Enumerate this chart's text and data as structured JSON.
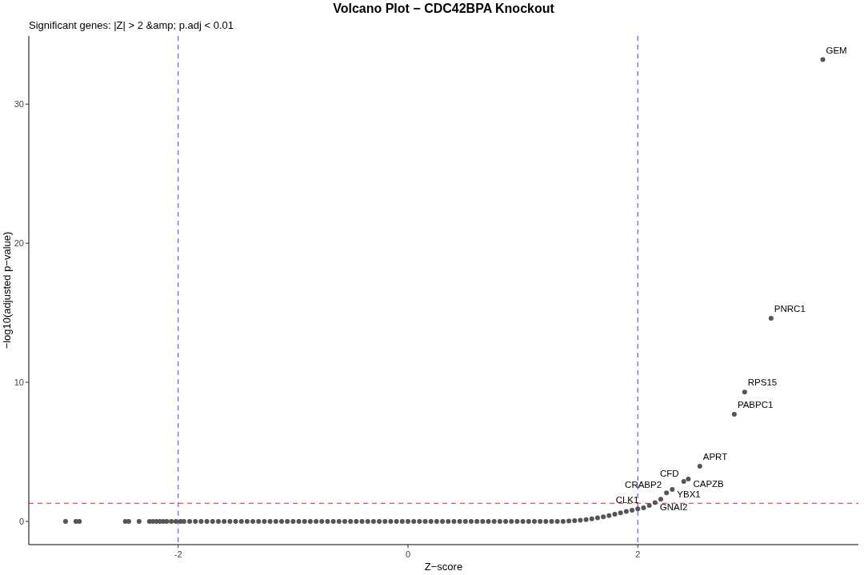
{
  "chart_data": {
    "type": "scatter",
    "title": "Volcano Plot − CDC42BPA Knockout",
    "subtitle": "Significant genes: |Z| > 2 &amp; p.adj < 0.01",
    "xlabel": "Z−score",
    "ylabel": "−log10(adjusted p−value)",
    "xlim": [
      -3.3,
      3.92
    ],
    "ylim": [
      -1.67,
      34.9
    ],
    "xticks": [
      -2,
      0,
      2
    ],
    "yticks": [
      0,
      10,
      20,
      30
    ],
    "grid": false,
    "marker": "circle",
    "x": [
      -2.98,
      -2.89,
      -2.86,
      -2.46,
      -2.43,
      -2.34,
      -2.25,
      -2.22,
      -2.19,
      -2.16,
      -2.13,
      -2.1,
      -2.06,
      -2.02,
      -1.98,
      -1.95,
      -1.9,
      -1.85,
      -1.8,
      -1.75,
      -1.7,
      -1.65,
      -1.6,
      -1.55,
      -1.5,
      -1.45,
      -1.4,
      -1.35,
      -1.3,
      -1.25,
      -1.2,
      -1.15,
      -1.1,
      -1.05,
      -1.0,
      -0.95,
      -0.9,
      -0.85,
      -0.8,
      -0.75,
      -0.7,
      -0.65,
      -0.6,
      -0.55,
      -0.5,
      -0.45,
      -0.4,
      -0.35,
      -0.3,
      -0.25,
      -0.2,
      -0.15,
      -0.1,
      -0.05,
      0.0,
      0.05,
      0.1,
      0.15,
      0.2,
      0.25,
      0.3,
      0.35,
      0.4,
      0.45,
      0.5,
      0.55,
      0.6,
      0.65,
      0.7,
      0.75,
      0.8,
      0.85,
      0.9,
      0.95,
      1.0,
      1.05,
      1.1,
      1.15,
      1.2,
      1.25,
      1.3,
      1.35,
      1.4,
      1.45,
      1.5,
      1.55,
      1.6,
      1.65,
      1.7,
      1.75,
      1.8,
      1.85,
      1.9,
      1.95,
      2.0,
      2.05,
      2.1,
      2.15,
      2.2,
      2.25,
      2.3,
      2.4,
      2.44,
      2.54,
      2.84,
      2.93,
      3.16,
      3.61
    ],
    "series": [
      {
        "color": "#555555",
        "values": [
          0,
          0,
          0,
          0,
          0,
          0,
          0,
          0,
          0,
          0,
          0,
          0,
          0,
          0,
          0,
          0,
          0,
          0,
          0,
          0,
          0,
          0,
          0,
          0,
          0,
          0,
          0,
          0,
          0,
          0,
          0,
          0,
          0,
          0,
          0,
          0,
          0,
          0,
          0,
          0,
          0,
          0,
          0,
          0,
          0,
          0,
          0,
          0,
          0,
          0,
          0,
          0,
          0,
          0,
          0,
          0,
          0,
          0,
          0,
          0,
          0,
          0,
          0,
          0,
          0,
          0,
          0,
          0,
          0,
          0,
          0,
          0,
          0,
          0,
          0,
          0,
          0,
          0,
          0,
          0,
          0,
          0,
          0.02,
          0.05,
          0.08,
          0.12,
          0.18,
          0.25,
          0.33,
          0.42,
          0.52,
          0.62,
          0.72,
          0.8,
          0.9,
          0.98,
          1.15,
          1.35,
          1.6,
          2.05,
          2.3,
          2.87,
          3.05,
          3.97,
          7.7,
          9.3,
          14.6,
          33.2
        ]
      }
    ],
    "ref_lines": [
      {
        "axis": "x",
        "value": -2,
        "color": "#6b5cf0",
        "line_style": "dashed"
      },
      {
        "axis": "x",
        "value": 2,
        "color": "#6b5cf0",
        "line_style": "dashed"
      },
      {
        "axis": "y",
        "value": 1.3,
        "color": "#e05555",
        "line_style": "dashed"
      }
    ],
    "annotations": [
      {
        "text": "GEM",
        "x": 3.61,
        "y": 33.2
      },
      {
        "text": "PNRC1",
        "x": 3.16,
        "y": 14.6
      },
      {
        "text": "RPS15",
        "x": 2.93,
        "y": 9.3
      },
      {
        "text": "PABPC1",
        "x": 2.84,
        "y": 7.7
      },
      {
        "text": "APRT",
        "x": 2.54,
        "y": 3.97
      },
      {
        "text": "CAPZB",
        "x": 2.44,
        "y": 3.05
      },
      {
        "text": "CFD",
        "x": 2.4,
        "y": 2.87
      },
      {
        "text": "YBX1",
        "x": 2.3,
        "y": 2.3
      },
      {
        "text": "GNAI2",
        "x": 2.15,
        "y": 1.35
      },
      {
        "text": "CLK1",
        "x": 2.05,
        "y": 0.98
      },
      {
        "text": "CRABP2",
        "x": 2.25,
        "y": 2.05
      }
    ]
  }
}
